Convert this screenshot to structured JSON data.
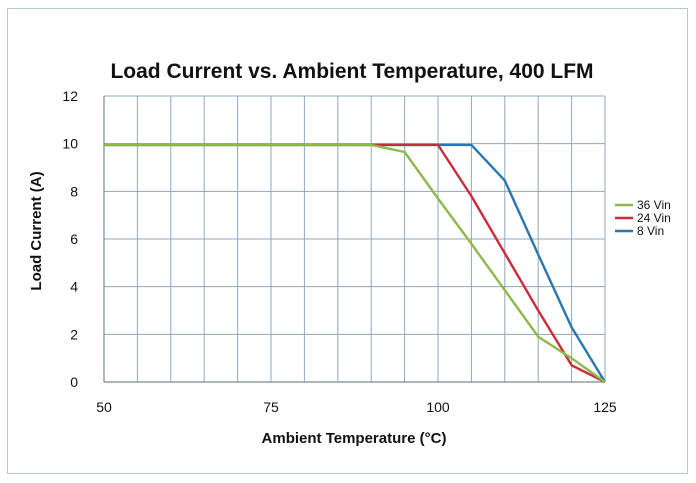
{
  "chart_data": {
    "type": "line",
    "title": "Load Current vs. Ambient Temperature, 400 LFM",
    "xlabel": "Ambient Temperature (°C)",
    "ylabel": "Load Current (A)",
    "xlim": [
      50,
      125
    ],
    "ylim": [
      0,
      12
    ],
    "x_ticks": [
      50,
      75,
      100,
      125
    ],
    "y_ticks": [
      0,
      2,
      4,
      6,
      8,
      10,
      12
    ],
    "x_minor_step": 5,
    "grid": true,
    "legend_position": "right",
    "series": [
      {
        "name": "36 Vin",
        "color": "#8db84a",
        "points": [
          [
            50,
            9.95
          ],
          [
            90,
            9.95
          ],
          [
            95,
            9.65
          ],
          [
            100,
            7.7
          ],
          [
            105,
            5.8
          ],
          [
            110,
            3.85
          ],
          [
            115,
            1.9
          ],
          [
            120,
            1.0
          ],
          [
            125,
            0
          ]
        ]
      },
      {
        "name": "24 Vin",
        "color": "#cc2b3b",
        "points": [
          [
            50,
            9.95
          ],
          [
            100,
            9.95
          ],
          [
            105,
            7.8
          ],
          [
            110,
            5.4
          ],
          [
            115,
            3.0
          ],
          [
            120,
            0.7
          ],
          [
            125,
            0
          ]
        ]
      },
      {
        "name": "8 Vin",
        "color": "#2a77b0",
        "points": [
          [
            50,
            9.95
          ],
          [
            105,
            9.95
          ],
          [
            110,
            8.45
          ],
          [
            115,
            5.35
          ],
          [
            120,
            2.3
          ],
          [
            125,
            0
          ]
        ]
      }
    ]
  }
}
